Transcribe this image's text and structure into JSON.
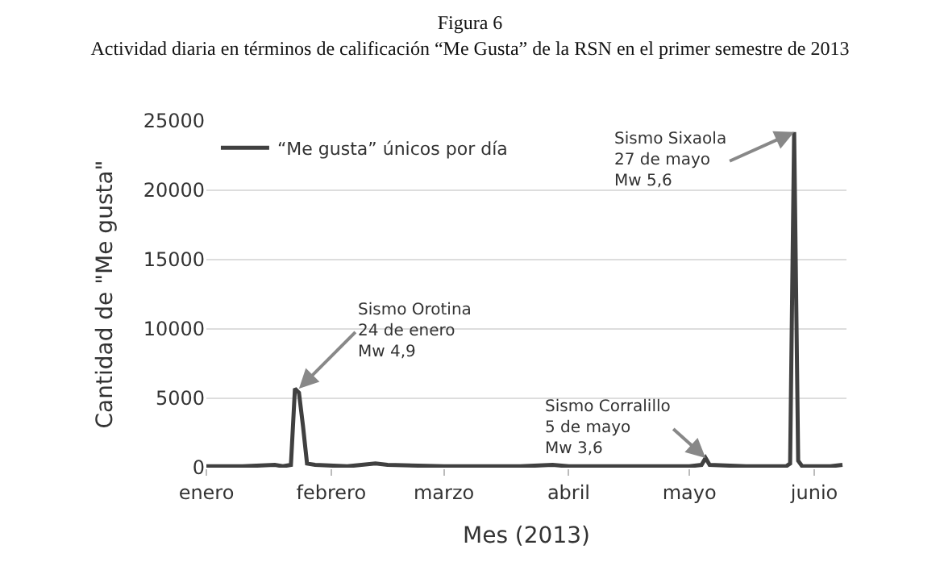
{
  "chart_data": {
    "type": "line",
    "title": "Figura 6",
    "subtitle": "Actividad diaria en términos de calificación “Me Gusta” de la RSN en el primer semestre de 2013",
    "xlabel": "Mes (2013)",
    "ylabel": "Cantidad de \"Me gusta\"",
    "x": [
      "2013-01-01",
      "2013-01-10",
      "2013-01-18",
      "2013-01-20",
      "2013-01-22",
      "2013-01-23",
      "2013-01-24",
      "2013-01-25",
      "2013-01-26",
      "2013-01-28",
      "2013-02-05",
      "2013-02-12",
      "2013-02-15",
      "2013-03-01",
      "2013-03-20",
      "2013-03-28",
      "2013-04-01",
      "2013-04-15",
      "2013-05-01",
      "2013-05-04",
      "2013-05-05",
      "2013-05-06",
      "2013-05-15",
      "2013-05-25",
      "2013-05-26",
      "2013-05-27",
      "2013-05-28",
      "2013-05-29",
      "2013-06-05",
      "2013-06-08"
    ],
    "series": [
      {
        "name": "“Me gusta” únicos por día",
        "color": "#404040",
        "values": [
          100,
          100,
          200,
          100,
          200,
          5700,
          5400,
          3000,
          300,
          200,
          100,
          300,
          200,
          100,
          100,
          200,
          100,
          100,
          100,
          200,
          700,
          200,
          100,
          100,
          300,
          24200,
          500,
          100,
          100,
          200
        ]
      }
    ],
    "xlim": [
      "2013-01-01",
      "2013-06-09"
    ],
    "xticks": [
      {
        "value": "2013-01-01",
        "label": "enero"
      },
      {
        "value": "2013-02-01",
        "label": "febrero"
      },
      {
        "value": "2013-03-01",
        "label": "marzo"
      },
      {
        "value": "2013-04-01",
        "label": "abril"
      },
      {
        "value": "2013-05-01",
        "label": "mayo"
      },
      {
        "value": "2013-06-01",
        "label": "junio"
      }
    ],
    "ylim": [
      0,
      25000
    ],
    "yticks": [
      0,
      5000,
      10000,
      15000,
      20000,
      25000
    ],
    "grid": "y",
    "legend": "top left",
    "marker": "none",
    "line_style": "solid",
    "annotations": [
      {
        "text": "Sismo Orotina\n24 de enero\nMw 4,9",
        "x": "2013-01-24",
        "y": 5700
      },
      {
        "text": "Sismo Corralillo\n5 de mayo\nMw 3,6",
        "x": "2013-05-05",
        "y": 700
      },
      {
        "text": "Sismo Sixaola\n27 de mayo\nMw 5,6",
        "x": "2013-05-27",
        "y": 24200
      }
    ]
  }
}
